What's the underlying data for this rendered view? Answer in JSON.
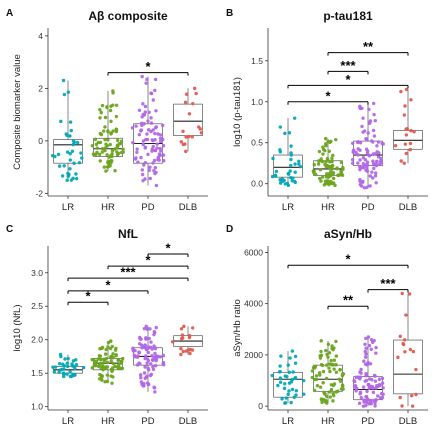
{
  "colors": {
    "LR": "#00A9B5",
    "HR": "#6BA51F",
    "PD": "#B266E8",
    "DLB": "#E05A4F",
    "box": "#555555",
    "bracket": "#000000"
  },
  "chart_data": [
    {
      "type": "box",
      "panel_letter": "A",
      "title": "Aβ composite",
      "ylabel": "Composite biomarker value",
      "xlabel": "",
      "categories": [
        "LR",
        "HR",
        "PD",
        "DLB"
      ],
      "ylim": [
        -2.1,
        4.3
      ],
      "yticks": [
        -2,
        0,
        2,
        4
      ],
      "ytick_labels": [
        "-2",
        "0",
        "2",
        "4"
      ],
      "grid": false,
      "boxes": [
        {
          "group": "LR",
          "q1": -0.85,
          "median": -0.15,
          "q3": 0.05,
          "whisker_low": -1.5,
          "whisker_high": 2.3,
          "n": 35
        },
        {
          "group": "HR",
          "q1": -0.6,
          "median": -0.3,
          "q3": 0.1,
          "whisker_low": -1.15,
          "whisker_high": 1.9,
          "n": 80
        },
        {
          "group": "PD",
          "q1": -0.85,
          "median": -0.1,
          "q3": 0.65,
          "whisker_low": -1.7,
          "whisker_high": 2.45,
          "n": 90
        },
        {
          "group": "DLB",
          "q1": 0.2,
          "median": 0.75,
          "q3": 1.4,
          "whisker_low": -0.4,
          "whisker_high": 2.0,
          "n": 15
        }
      ],
      "comparisons": [
        {
          "from": "HR",
          "to": "DLB",
          "y": 2.6,
          "label": "*"
        }
      ]
    },
    {
      "type": "box",
      "panel_letter": "B",
      "title": "p-tau181",
      "ylabel": "log10 (p-tau181)",
      "xlabel": "",
      "categories": [
        "LR",
        "HR",
        "PD",
        "DLB"
      ],
      "ylim": [
        -0.15,
        1.9
      ],
      "yticks": [
        0,
        0.5,
        1,
        1.5
      ],
      "ytick_labels": [
        "0.0",
        "0.5",
        "1.0",
        "1.5"
      ],
      "grid": false,
      "boxes": [
        {
          "group": "LR",
          "q1": 0.08,
          "median": 0.2,
          "q3": 0.35,
          "whisker_low": -0.02,
          "whisker_high": 0.8,
          "n": 35
        },
        {
          "group": "HR",
          "q1": 0.1,
          "median": 0.18,
          "q3": 0.28,
          "whisker_low": -0.02,
          "whisker_high": 0.55,
          "n": 80
        },
        {
          "group": "PD",
          "q1": 0.22,
          "median": 0.35,
          "q3": 0.52,
          "whisker_low": -0.05,
          "whisker_high": 0.98,
          "n": 90
        },
        {
          "group": "DLB",
          "q1": 0.42,
          "median": 0.53,
          "q3": 0.65,
          "whisker_low": 0.25,
          "whisker_high": 1.15,
          "n": 15
        }
      ],
      "comparisons": [
        {
          "from": "HR",
          "to": "DLB",
          "y": 1.6,
          "label": "**"
        },
        {
          "from": "HR",
          "to": "PD",
          "y": 1.37,
          "label": "***"
        },
        {
          "from": "LR",
          "to": "DLB",
          "y": 1.2,
          "label": "*"
        },
        {
          "from": "LR",
          "to": "PD",
          "y": 1.0,
          "label": "*"
        }
      ]
    },
    {
      "type": "box",
      "panel_letter": "C",
      "title": "NfL",
      "ylabel": "log10 (NfL)",
      "xlabel": "",
      "categories": [
        "LR",
        "HR",
        "PD",
        "DLB"
      ],
      "ylim": [
        0.95,
        3.4
      ],
      "yticks": [
        1.0,
        1.5,
        2.0,
        2.5,
        3.0
      ],
      "ytick_labels": [
        "1.0",
        "1.5",
        "2.0",
        "2.5",
        "3.0"
      ],
      "grid": false,
      "boxes": [
        {
          "group": "LR",
          "q1": 1.5,
          "median": 1.55,
          "q3": 1.6,
          "whisker_low": 1.45,
          "whisker_high": 1.78,
          "n": 35
        },
        {
          "group": "HR",
          "q1": 1.55,
          "median": 1.65,
          "q3": 1.72,
          "whisker_low": 1.35,
          "whisker_high": 1.98,
          "n": 80
        },
        {
          "group": "PD",
          "q1": 1.62,
          "median": 1.75,
          "q3": 1.88,
          "whisker_low": 1.22,
          "whisker_high": 2.2,
          "n": 90
        },
        {
          "group": "DLB",
          "q1": 1.9,
          "median": 1.98,
          "q3": 2.06,
          "whisker_low": 1.78,
          "whisker_high": 2.2,
          "n": 15
        }
      ],
      "comparisons": [
        {
          "from": "PD",
          "to": "DLB",
          "y": 3.28,
          "label": "*"
        },
        {
          "from": "HR",
          "to": "DLB",
          "y": 3.1,
          "label": "*"
        },
        {
          "from": "LR",
          "to": "DLB",
          "y": 2.92,
          "label": "***"
        },
        {
          "from": "LR",
          "to": "PD",
          "y": 2.73,
          "label": "*"
        },
        {
          "from": "LR",
          "to": "HR",
          "y": 2.56,
          "label": "*"
        }
      ]
    },
    {
      "type": "box",
      "panel_letter": "D",
      "title": "aSyn/Hb",
      "ylabel": "aSyn/Hb ratio",
      "xlabel": "",
      "categories": [
        "LR",
        "HR",
        "PD",
        "DLB"
      ],
      "ylim": [
        -150,
        6250
      ],
      "yticks": [
        0,
        2000,
        4000,
        6000
      ],
      "ytick_labels": [
        "0",
        "2000",
        "4000",
        "6000"
      ],
      "grid": false,
      "boxes": [
        {
          "group": "LR",
          "q1": 350,
          "median": 1050,
          "q3": 1320,
          "whisker_low": 120,
          "whisker_high": 2150,
          "n": 35
        },
        {
          "group": "HR",
          "q1": 580,
          "median": 1050,
          "q3": 1600,
          "whisker_low": 120,
          "whisker_high": 2550,
          "n": 80
        },
        {
          "group": "PD",
          "q1": 250,
          "median": 650,
          "q3": 1150,
          "whisker_low": 0,
          "whisker_high": 2700,
          "n": 90
        },
        {
          "group": "DLB",
          "q1": 480,
          "median": 1250,
          "q3": 2580,
          "whisker_low": 0,
          "whisker_high": 4400,
          "n": 15
        }
      ],
      "comparisons": [
        {
          "from": "LR",
          "to": "DLB",
          "y": 5500,
          "label": "*"
        },
        {
          "from": "PD",
          "to": "DLB",
          "y": 4550,
          "label": "***"
        },
        {
          "from": "HR",
          "to": "PD",
          "y": 3900,
          "label": "**"
        }
      ]
    }
  ]
}
